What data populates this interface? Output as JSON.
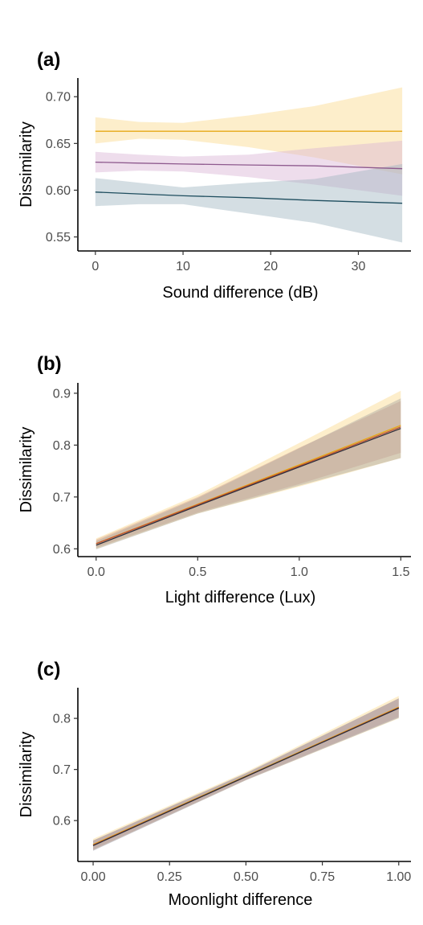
{
  "chart_data": [
    {
      "type": "line",
      "panel_label": "(a)",
      "xlabel": "Sound difference (dB)",
      "ylabel": "Dissimilarity",
      "xlim": [
        -2,
        36
      ],
      "ylim": [
        0.535,
        0.72
      ],
      "xticks": [
        0,
        10,
        20,
        30
      ],
      "xtick_labels": [
        "0",
        "10",
        "20",
        "30"
      ],
      "yticks": [
        0.55,
        0.6,
        0.65,
        0.7
      ],
      "ytick_labels": [
        "0.55",
        "0.60",
        "0.65",
        "0.70"
      ],
      "grid": false,
      "series": [
        {
          "color": "#e6a817",
          "band_color": "#fbd98c",
          "x": [
            0,
            5,
            10,
            17.5,
            25,
            35
          ],
          "y": [
            0.663,
            0.663,
            0.663,
            0.663,
            0.663,
            0.663
          ],
          "lower": [
            0.65,
            0.655,
            0.654,
            0.646,
            0.635,
            0.617
          ],
          "upper": [
            0.678,
            0.673,
            0.672,
            0.68,
            0.69,
            0.71
          ]
        },
        {
          "color": "#8e5a8e",
          "band_color": "#d9b3d4",
          "x": [
            0,
            5,
            10,
            17.5,
            25,
            35
          ],
          "y": [
            0.63,
            0.629,
            0.628,
            0.627,
            0.626,
            0.623
          ],
          "lower": [
            0.619,
            0.621,
            0.62,
            0.614,
            0.606,
            0.594
          ],
          "upper": [
            0.641,
            0.638,
            0.636,
            0.638,
            0.645,
            0.653
          ]
        },
        {
          "color": "#1f4e5f",
          "band_color": "#9fb6c0",
          "x": [
            0,
            5,
            10,
            17.5,
            25,
            35
          ],
          "y": [
            0.598,
            0.596,
            0.594,
            0.592,
            0.589,
            0.586
          ],
          "lower": [
            0.583,
            0.585,
            0.585,
            0.575,
            0.565,
            0.544
          ],
          "upper": [
            0.613,
            0.608,
            0.603,
            0.608,
            0.612,
            0.628
          ]
        }
      ]
    },
    {
      "type": "line",
      "panel_label": "(b)",
      "xlabel": "Light difference (Lux)",
      "ylabel": "Dissimilarity",
      "xlim": [
        -0.09,
        1.55
      ],
      "ylim": [
        0.585,
        0.92
      ],
      "xticks": [
        0.0,
        0.5,
        1.0,
        1.5
      ],
      "xtick_labels": [
        "0.0",
        "0.5",
        "1.0",
        "1.5"
      ],
      "yticks": [
        0.6,
        0.7,
        0.8,
        0.9
      ],
      "ytick_labels": [
        "0.6",
        "0.7",
        "0.8",
        "0.9"
      ],
      "grid": false,
      "series": [
        {
          "color": "#e6a817",
          "band_color": "#fbd98c",
          "x": [
            0,
            0.5,
            1.0,
            1.5
          ],
          "y": [
            0.61,
            0.686,
            0.762,
            0.838
          ],
          "lower": [
            0.6,
            0.668,
            0.72,
            0.775
          ],
          "upper": [
            0.62,
            0.704,
            0.804,
            0.905
          ]
        },
        {
          "color": "#c0522f",
          "band_color": "#d9a58f",
          "x": [
            0,
            0.5,
            1.0,
            1.5
          ],
          "y": [
            0.61,
            0.685,
            0.76,
            0.835
          ],
          "lower": [
            0.602,
            0.67,
            0.725,
            0.785
          ],
          "upper": [
            0.618,
            0.7,
            0.795,
            0.885
          ]
        },
        {
          "color": "#2e2e3a",
          "band_color": "#a8a4a0",
          "x": [
            0,
            0.5,
            1.0,
            1.5
          ],
          "y": [
            0.607,
            0.683,
            0.758,
            0.832
          ],
          "lower": [
            0.599,
            0.668,
            0.722,
            0.775
          ],
          "upper": [
            0.615,
            0.698,
            0.794,
            0.89
          ]
        }
      ]
    },
    {
      "type": "line",
      "panel_label": "(c)",
      "xlabel": "Moonlight difference",
      "ylabel": "Dissimilarity",
      "xlim": [
        -0.05,
        1.04
      ],
      "ylim": [
        0.52,
        0.86
      ],
      "xticks": [
        0.0,
        0.25,
        0.5,
        0.75,
        1.0
      ],
      "xtick_labels": [
        "0.00",
        "0.25",
        "0.50",
        "0.75",
        "1.00"
      ],
      "yticks": [
        0.6,
        0.7,
        0.8
      ],
      "ytick_labels": [
        "0.6",
        "0.7",
        "0.8"
      ],
      "grid": false,
      "series": [
        {
          "color": "#e6a817",
          "band_color": "#fbd98c",
          "x": [
            0,
            0.5,
            1.0
          ],
          "y": [
            0.553,
            0.687,
            0.822
          ],
          "lower": [
            0.542,
            0.679,
            0.8
          ],
          "upper": [
            0.564,
            0.695,
            0.844
          ]
        },
        {
          "color": "#c0522f",
          "band_color": "#d9a58f",
          "x": [
            0,
            0.5,
            1.0
          ],
          "y": [
            0.552,
            0.686,
            0.821
          ],
          "lower": [
            0.543,
            0.68,
            0.803
          ],
          "upper": [
            0.561,
            0.692,
            0.839
          ]
        },
        {
          "color": "#2e2e3a",
          "band_color": "#8f8fa6",
          "x": [
            0,
            0.5,
            1.0
          ],
          "y": [
            0.551,
            0.686,
            0.82
          ],
          "lower": [
            0.541,
            0.679,
            0.801
          ],
          "upper": [
            0.561,
            0.693,
            0.839
          ]
        }
      ]
    }
  ]
}
